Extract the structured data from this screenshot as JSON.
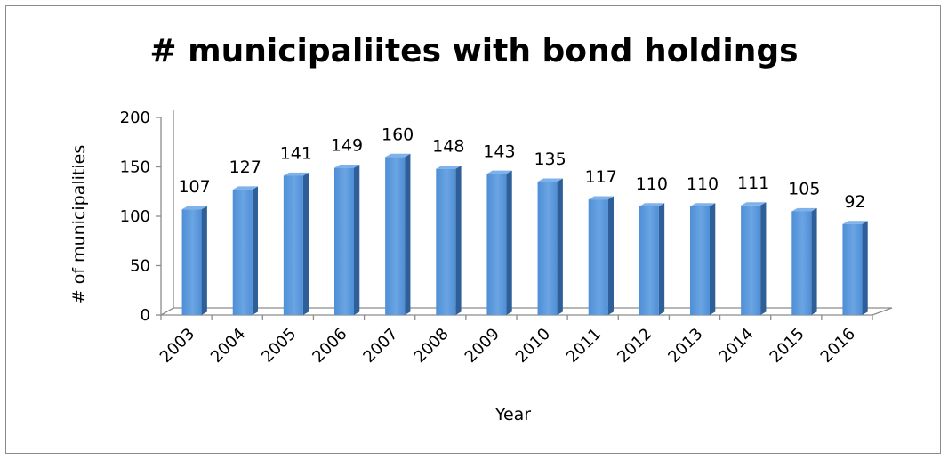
{
  "chart_data": {
    "type": "bar",
    "title": "# municipaliites with bond holdings",
    "xlabel": "Year",
    "ylabel": "# of municipalities",
    "categories": [
      "2003",
      "2004",
      "2005",
      "2006",
      "2007",
      "2008",
      "2009",
      "2010",
      "2011",
      "2012",
      "2013",
      "2014",
      "2015",
      "2016"
    ],
    "values": [
      107,
      127,
      141,
      149,
      160,
      148,
      143,
      135,
      117,
      110,
      110,
      111,
      105,
      92
    ],
    "ylim": [
      0,
      200
    ],
    "yticks": [
      0,
      50,
      100,
      150,
      200
    ],
    "data_labels": true,
    "grid": false,
    "legend": "none",
    "style": "3d-column",
    "colors": {
      "bar_front": "#4f8fd6",
      "bar_front_light": "#6aa4e3",
      "bar_side": "#2f5f99",
      "bar_top": "#7fb2ea",
      "axis": "#8c8c8c"
    }
  }
}
